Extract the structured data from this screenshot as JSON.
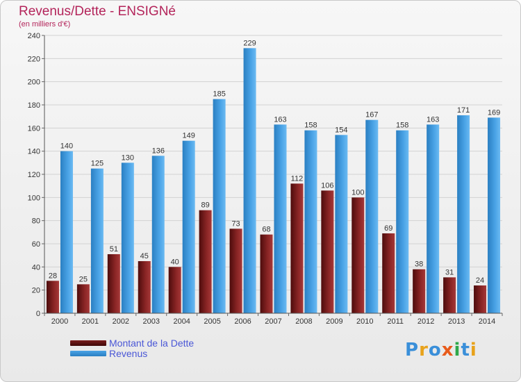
{
  "header": {
    "title": "Revenus/Dette - ENSIGNé",
    "subtitle": "(en milliers d'€)"
  },
  "legend": [
    {
      "label": "Montant de la Dette",
      "color": "#7a1d1d"
    },
    {
      "label": "Revenus",
      "color": "#4aa3e6"
    }
  ],
  "logo": {
    "text": "Proxiti"
  },
  "chart_data": {
    "type": "bar",
    "title": "Revenus/Dette - ENSIGNé",
    "ylabel": "(en milliers d'€)",
    "ylim": [
      0,
      240
    ],
    "yticks": [
      0,
      20,
      40,
      60,
      80,
      100,
      120,
      140,
      160,
      180,
      200,
      220,
      240
    ],
    "grid": true,
    "legend_position": "bottom-left",
    "categories": [
      "2000",
      "2001",
      "2002",
      "2003",
      "2004",
      "2005",
      "2006",
      "2007",
      "2008",
      "2009",
      "2010",
      "2011",
      "2012",
      "2013",
      "2014"
    ],
    "series": [
      {
        "name": "Montant de la Dette",
        "color": "#7a1d1d",
        "values": [
          28,
          25,
          51,
          45,
          40,
          89,
          73,
          68,
          112,
          106,
          100,
          69,
          38,
          31,
          24
        ]
      },
      {
        "name": "Revenus",
        "color": "#4aa3e6",
        "values": [
          140,
          125,
          130,
          136,
          149,
          185,
          229,
          163,
          158,
          154,
          167,
          158,
          163,
          171,
          169
        ]
      }
    ]
  }
}
